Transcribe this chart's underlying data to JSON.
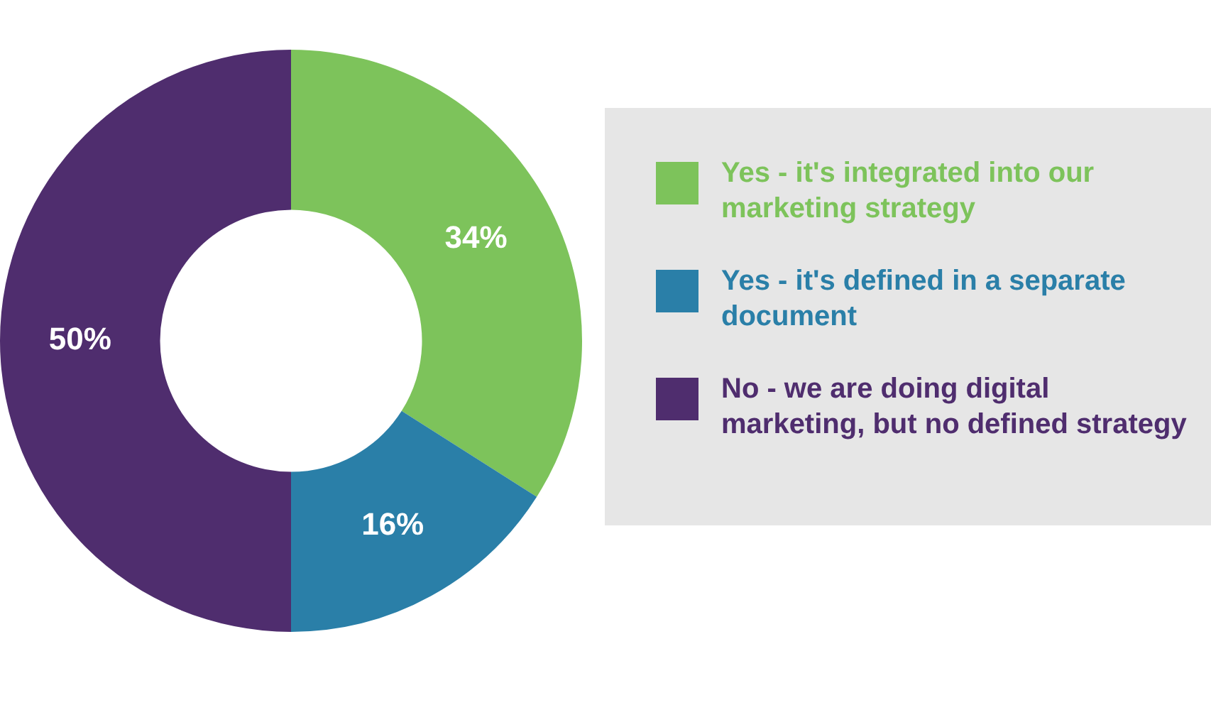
{
  "chart_data": {
    "type": "donut",
    "categories": [
      "Yes - it's integrated into our marketing strategy",
      "Yes - it's defined in a separate document",
      "No - we are doing digital marketing, but no defined strategy"
    ],
    "values": [
      34,
      16,
      50
    ],
    "colors": [
      "#7dc35b",
      "#2a7fa8",
      "#4f2d6e"
    ],
    "value_labels": [
      "34%",
      "16%",
      "50%"
    ],
    "legend": "right"
  }
}
